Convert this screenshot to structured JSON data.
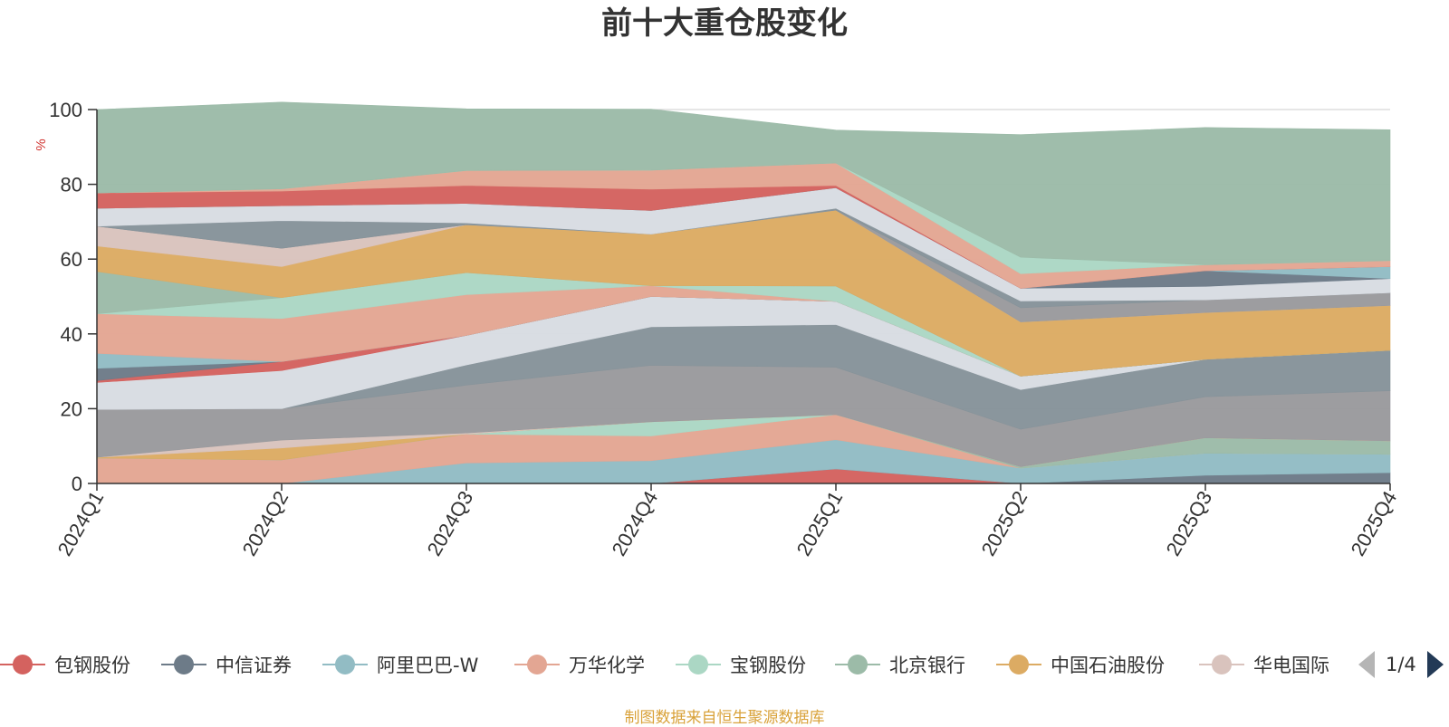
{
  "title": "前十大重仓股变化",
  "source_note": "制图数据来自恒生聚源数据库",
  "pager": {
    "text": "1/4"
  },
  "chart_data": {
    "type": "area",
    "stacked": true,
    "title": "前十大重仓股变化",
    "ylabel": "%",
    "ylim": [
      0,
      100
    ],
    "yticks": [
      0,
      20,
      40,
      60,
      80,
      100
    ],
    "categories": [
      "2024Q1",
      "2024Q2",
      "2024Q3",
      "2024Q4",
      "2025Q1",
      "2025Q2",
      "2025Q3",
      "2025Q4"
    ],
    "grid": true,
    "legend_position": "bottom",
    "legend_page": "1/4",
    "series": [
      {
        "name": "包钢股份",
        "color": "#d4625f",
        "in_legend": true,
        "values": [
          0,
          0,
          0,
          0,
          3.9,
          0,
          0,
          0
        ]
      },
      {
        "name": "中信证券",
        "color": "#6d7b88",
        "in_legend": true,
        "values": [
          0,
          0,
          0,
          0,
          0,
          0,
          2.2,
          2.9
        ]
      },
      {
        "name": "阿里巴巴-W",
        "color": "#92bcc4",
        "in_legend": true,
        "values": [
          0,
          0,
          5.5,
          6.1,
          7.8,
          4.1,
          5.9,
          4.9
        ]
      },
      {
        "name": "万华化学",
        "color": "#e3a693",
        "in_legend": true,
        "values": [
          6.8,
          6.3,
          7.7,
          6.6,
          6.7,
          0,
          0,
          0
        ]
      },
      {
        "name": "宝钢股份",
        "color": "#abd7c4",
        "in_legend": true,
        "values": [
          0,
          0,
          0,
          3.8,
          0,
          0,
          0,
          0
        ]
      },
      {
        "name": "北京银行",
        "color": "#9cbba8",
        "in_legend": true,
        "values": [
          0,
          0,
          0,
          0,
          0,
          0.4,
          4.1,
          3.6
        ]
      },
      {
        "name": "中国石油股份",
        "color": "#dcab63",
        "in_legend": true,
        "values": [
          0.2,
          3.2,
          0,
          0,
          0,
          0,
          0,
          0
        ]
      },
      {
        "name": "华电国际",
        "color": "#d9c3bd",
        "in_legend": true,
        "values": [
          0,
          2.1,
          0.3,
          0,
          0,
          0,
          0,
          0
        ]
      },
      {
        "name": "",
        "color": "#9a9a9d",
        "in_legend": false,
        "values": [
          12.8,
          8.4,
          12.8,
          15.1,
          12.7,
          10.0,
          11.0,
          13.4
        ]
      },
      {
        "name": "",
        "color": "#86939a",
        "in_legend": false,
        "values": [
          0,
          0,
          5.4,
          10.3,
          11.4,
          10.6,
          10.0,
          10.8
        ]
      },
      {
        "name": "",
        "color": "#d8dce2",
        "in_legend": false,
        "values": [
          7.2,
          10.2,
          7.9,
          8.1,
          6.2,
          3.6,
          0,
          0
        ]
      },
      {
        "name": "",
        "color": "#d4625f",
        "in_legend": false,
        "values": [
          0.5,
          2.4,
          0,
          0,
          0,
          0,
          0,
          0
        ]
      },
      {
        "name": "",
        "color": "#6d7b88",
        "in_legend": false,
        "values": [
          3.3,
          0,
          0,
          0,
          0,
          0,
          0,
          0
        ]
      },
      {
        "name": "",
        "color": "#92bcc4",
        "in_legend": false,
        "values": [
          4.0,
          0,
          0,
          0,
          0,
          0,
          0,
          0
        ]
      },
      {
        "name": "",
        "color": "#e3a693",
        "in_legend": false,
        "values": [
          10.6,
          11.5,
          10.9,
          2.9,
          0,
          0,
          0,
          0
        ]
      },
      {
        "name": "",
        "color": "#abd7c4",
        "in_legend": false,
        "values": [
          0,
          5.6,
          5.9,
          0,
          4.1,
          0,
          0,
          0
        ]
      },
      {
        "name": "",
        "color": "#9cbba8",
        "in_legend": false,
        "values": [
          11.3,
          0,
          0,
          0,
          0,
          0,
          0,
          0
        ]
      },
      {
        "name": "",
        "color": "#dcab63",
        "in_legend": false,
        "values": [
          6.8,
          8.3,
          12.8,
          13.8,
          20.3,
          14.5,
          12.5,
          12.0
        ]
      },
      {
        "name": "",
        "color": "#d9c3bd",
        "in_legend": false,
        "values": [
          5.3,
          4.9,
          0,
          0,
          0,
          0,
          0,
          0
        ]
      },
      {
        "name": "",
        "color": "#9a9a9d",
        "in_legend": false,
        "values": [
          0,
          0,
          0,
          0,
          0,
          3.8,
          3.4,
          3.4
        ]
      },
      {
        "name": "",
        "color": "#86939a",
        "in_legend": false,
        "values": [
          0,
          7.4,
          0.5,
          0,
          0.5,
          1.8,
          0,
          0
        ]
      },
      {
        "name": "",
        "color": "#d8dce2",
        "in_legend": false,
        "values": [
          4.8,
          4.0,
          5.2,
          6.3,
          5.5,
          3.4,
          3.6,
          3.8
        ]
      },
      {
        "name": "",
        "color": "#6d7b88",
        "in_legend": false,
        "values": [
          0,
          0,
          0,
          0,
          0,
          0,
          4.2,
          0
        ]
      },
      {
        "name": "",
        "color": "#92bcc4",
        "in_legend": false,
        "values": [
          0,
          0,
          0,
          0,
          0,
          0,
          0,
          3.2
        ]
      },
      {
        "name": "",
        "color": "#d4625f",
        "in_legend": false,
        "values": [
          4.1,
          3.9,
          4.8,
          5.7,
          0.6,
          0,
          0,
          0
        ]
      },
      {
        "name": "",
        "color": "#e3a693",
        "in_legend": false,
        "values": [
          0,
          0.6,
          4.0,
          5.1,
          6.0,
          3.9,
          1.6,
          1.6
        ]
      },
      {
        "name": "",
        "color": "#abd7c4",
        "in_legend": false,
        "values": [
          0,
          0,
          0,
          0,
          0,
          4.4,
          0,
          0
        ]
      },
      {
        "name": "",
        "color": "#9cbba8",
        "in_legend": false,
        "values": [
          22.3,
          23.2,
          16.5,
          16.3,
          8.8,
          32.8,
          36.7,
          35.0
        ]
      }
    ]
  }
}
